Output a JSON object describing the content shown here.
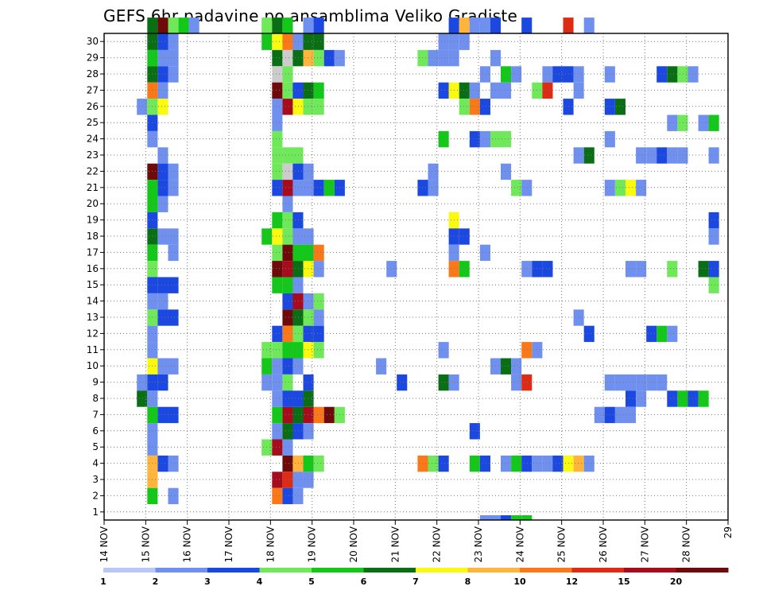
{
  "chart_data": {
    "type": "heatmap",
    "title": "GEFS 6hr padavine po ansamblima Veliko Gradiste",
    "xlabel": "",
    "ylabel": "",
    "x_tick_labels": [
      "14 NOV",
      "15 NOV",
      "16 NOV",
      "17 NOV",
      "18 NOV",
      "19 NOV",
      "20 NOV",
      "21 NOV",
      "22 NOV",
      "23 NOV",
      "24 NOV",
      "25 NOV",
      "26 NOV",
      "27 NOV",
      "28 NOV",
      "29"
    ],
    "x_unit": "6-hour steps",
    "x_range": [
      0,
      60
    ],
    "y_tick_labels": [
      "1",
      "2",
      "3",
      "4",
      "5",
      "6",
      "7",
      "8",
      "9",
      "10",
      "11",
      "12",
      "13",
      "14",
      "15",
      "16",
      "17",
      "18",
      "19",
      "20",
      "21",
      "22",
      "23",
      "24",
      "25",
      "26",
      "27",
      "28",
      "29",
      "30"
    ],
    "y_range": [
      0,
      30
    ],
    "grid": true,
    "color_scale": {
      "colors": [
        "#b9c8f7",
        "#6f90ee",
        "#1b48e0",
        "#6fe85a",
        "#14c81a",
        "#0a6e14",
        "#fafa10",
        "#ffb43c",
        "#fa7818",
        "#dc2c14",
        "#a60c1c",
        "#6e0a0a"
      ],
      "labels": [
        "1",
        "2",
        "3",
        "4",
        "5",
        "6",
        "7",
        "8",
        "10",
        "12",
        "15",
        "20"
      ]
    },
    "cells": [
      [
        4,
        30,
        5
      ],
      [
        5,
        30,
        11
      ],
      [
        6,
        30,
        3
      ],
      [
        7,
        30,
        4
      ],
      [
        8,
        30,
        1
      ],
      [
        4,
        29,
        5
      ],
      [
        5,
        29,
        2
      ],
      [
        6,
        29,
        1
      ],
      [
        1,
        29,
        4
      ],
      [
        2,
        29,
        6
      ],
      [
        3,
        29,
        8
      ],
      [
        4,
        29,
        1
      ],
      [
        5,
        29,
        5
      ],
      [
        6,
        29,
        5
      ],
      [
        4,
        28,
        4
      ],
      [
        5,
        28,
        1
      ],
      [
        6,
        28,
        1
      ],
      [
        2,
        28,
        5
      ],
      [
        3,
        28,
        12
      ],
      [
        4,
        28,
        5
      ],
      [
        5,
        28,
        7
      ],
      [
        6,
        28,
        3
      ],
      [
        7,
        28,
        2
      ],
      [
        8,
        28,
        1
      ],
      [
        4,
        27,
        5
      ],
      [
        5,
        27,
        2
      ],
      [
        6,
        27,
        1
      ],
      [
        2,
        27,
        12
      ],
      [
        3,
        27,
        3
      ],
      [
        4,
        26,
        8
      ],
      [
        5,
        26,
        1
      ],
      [
        2,
        26,
        11
      ],
      [
        3,
        26,
        3
      ],
      [
        4,
        26,
        2
      ],
      [
        5,
        26,
        5
      ],
      [
        6,
        26,
        4
      ],
      [
        3,
        25,
        1
      ],
      [
        4,
        25,
        3
      ],
      [
        5,
        25,
        6
      ],
      [
        2,
        25,
        1
      ],
      [
        3,
        25,
        10
      ],
      [
        4,
        25,
        6
      ],
      [
        5,
        25,
        3
      ],
      [
        6,
        25,
        3
      ],
      [
        4,
        24,
        2
      ],
      [
        2,
        24,
        1
      ],
      [
        4,
        23,
        1
      ],
      [
        2,
        23,
        3
      ],
      [
        5,
        22,
        1
      ],
      [
        2,
        22,
        3
      ],
      [
        3,
        22,
        3
      ],
      [
        4,
        22,
        3
      ],
      [
        4,
        21,
        11
      ],
      [
        5,
        21,
        2
      ],
      [
        6,
        21,
        1
      ],
      [
        2,
        21,
        3
      ],
      [
        3,
        21,
        12
      ],
      [
        4,
        21,
        2
      ],
      [
        5,
        21,
        1
      ],
      [
        4,
        20,
        4
      ],
      [
        5,
        20,
        2
      ],
      [
        6,
        20,
        1
      ],
      [
        2,
        20,
        2
      ],
      [
        3,
        20,
        10
      ],
      [
        4,
        20,
        1
      ],
      [
        5,
        20,
        1
      ],
      [
        6,
        20,
        2
      ],
      [
        7,
        20,
        4
      ],
      [
        8,
        20,
        2
      ],
      [
        4,
        19,
        4
      ],
      [
        5,
        19,
        1
      ],
      [
        3,
        19,
        1
      ],
      [
        4,
        18,
        2
      ],
      [
        2,
        18,
        4
      ],
      [
        3,
        18,
        3
      ],
      [
        4,
        18,
        2
      ],
      [
        4,
        17,
        5
      ],
      [
        5,
        17,
        1
      ],
      [
        6,
        17,
        1
      ],
      [
        1,
        17,
        4
      ],
      [
        2,
        17,
        6
      ],
      [
        3,
        17,
        3
      ],
      [
        4,
        17,
        1
      ],
      [
        5,
        17,
        1
      ],
      [
        4,
        16,
        4
      ],
      [
        6,
        16,
        1
      ],
      [
        2,
        16,
        3
      ],
      [
        3,
        16,
        11
      ],
      [
        4,
        16,
        4
      ],
      [
        5,
        16,
        4
      ],
      [
        6,
        16,
        8
      ],
      [
        4,
        15,
        3
      ],
      [
        2,
        15,
        11
      ],
      [
        3,
        15,
        10
      ],
      [
        4,
        15,
        5
      ],
      [
        5,
        15,
        6
      ],
      [
        6,
        15,
        1
      ],
      [
        4,
        14,
        2
      ],
      [
        5,
        14,
        2
      ],
      [
        6,
        14,
        2
      ],
      [
        2,
        14,
        4
      ],
      [
        3,
        14,
        4
      ],
      [
        4,
        14,
        1
      ],
      [
        4,
        13,
        1
      ],
      [
        5,
        13,
        1
      ],
      [
        3,
        13,
        2
      ],
      [
        4,
        13,
        10
      ],
      [
        5,
        13,
        1
      ],
      [
        6,
        13,
        3
      ],
      [
        4,
        12,
        3
      ],
      [
        5,
        12,
        2
      ],
      [
        6,
        12,
        2
      ],
      [
        3,
        12,
        11
      ],
      [
        4,
        12,
        5
      ],
      [
        5,
        12,
        3
      ],
      [
        6,
        12,
        1
      ],
      [
        4,
        11,
        1
      ],
      [
        2,
        11,
        2
      ],
      [
        3,
        11,
        8
      ],
      [
        4,
        11,
        3
      ],
      [
        5,
        11,
        2
      ],
      [
        6,
        11,
        2
      ],
      [
        4,
        10,
        1
      ],
      [
        1,
        10,
        3
      ],
      [
        2,
        10,
        3
      ],
      [
        3,
        10,
        4
      ],
      [
        4,
        10,
        4
      ],
      [
        5,
        10,
        6
      ],
      [
        6,
        10,
        3
      ],
      [
        4,
        9,
        6
      ],
      [
        5,
        9,
        1
      ],
      [
        6,
        9,
        1
      ],
      [
        1,
        9,
        4
      ],
      [
        2,
        9,
        1
      ],
      [
        3,
        9,
        2
      ],
      [
        4,
        9,
        1
      ],
      [
        3,
        8,
        1
      ],
      [
        4,
        8,
        2
      ],
      [
        5,
        8,
        2
      ],
      [
        3,
        7,
        5
      ],
      [
        4,
        7,
        1
      ],
      [
        4,
        6,
        4
      ],
      [
        5,
        6,
        2
      ],
      [
        6,
        6,
        2
      ],
      [
        2,
        6,
        4
      ],
      [
        3,
        6,
        10
      ],
      [
        4,
        6,
        5
      ],
      [
        5,
        6,
        10
      ],
      [
        6,
        6,
        8
      ],
      [
        7,
        6,
        11
      ],
      [
        8,
        6,
        3
      ],
      [
        4,
        5,
        1
      ],
      [
        2,
        5,
        1
      ],
      [
        3,
        5,
        5
      ],
      [
        4,
        5,
        2
      ],
      [
        5,
        5,
        1
      ],
      [
        4,
        4,
        1
      ],
      [
        1,
        4,
        3
      ],
      [
        2,
        4,
        10
      ],
      [
        3,
        4,
        1
      ],
      [
        4,
        3,
        7
      ],
      [
        5,
        3,
        2
      ],
      [
        6,
        3,
        1
      ],
      [
        3,
        3,
        11
      ],
      [
        4,
        3,
        7
      ],
      [
        5,
        3,
        4
      ],
      [
        6,
        3,
        3
      ],
      [
        4,
        2,
        7
      ],
      [
        2,
        2,
        10
      ],
      [
        3,
        2,
        9
      ],
      [
        4,
        2,
        1
      ],
      [
        5,
        2,
        1
      ],
      [
        4,
        1,
        4
      ],
      [
        6,
        1,
        1
      ],
      [
        2,
        1,
        8
      ],
      [
        3,
        1,
        2
      ],
      [
        4,
        1,
        1
      ],
      [
        5,
        30,
        1
      ],
      [
        6,
        30,
        2
      ],
      [
        1,
        30,
        3
      ],
      [
        2,
        30,
        5
      ],
      [
        3,
        30,
        4
      ],
      [
        3,
        8,
        1
      ],
      [
        5,
        8,
        2
      ],
      [
        1,
        8,
        1
      ],
      [
        2,
        8,
        1
      ],
      [
        3,
        8,
        3
      ],
      [
        2,
        7,
        1
      ],
      [
        3,
        7,
        2
      ],
      [
        4,
        7,
        2
      ],
      [
        5,
        7,
        5
      ]
    ],
    "far_cells": [
      [
        33,
        30,
        2
      ],
      [
        34,
        30,
        7
      ],
      [
        35,
        30,
        1
      ],
      [
        36,
        30,
        1
      ],
      [
        37,
        30,
        2
      ],
      [
        40,
        30,
        2
      ],
      [
        44,
        30,
        9
      ],
      [
        46,
        30,
        1
      ],
      [
        32,
        29,
        1
      ],
      [
        33,
        29,
        1
      ],
      [
        34,
        29,
        1
      ],
      [
        30,
        28,
        3
      ],
      [
        31,
        28,
        1
      ],
      [
        32,
        28,
        1
      ],
      [
        33,
        28,
        1
      ],
      [
        37,
        28,
        1
      ],
      [
        36,
        27,
        1
      ],
      [
        38,
        27,
        4
      ],
      [
        39,
        27,
        1
      ],
      [
        42,
        27,
        1
      ],
      [
        43,
        27,
        2
      ],
      [
        44,
        27,
        2
      ],
      [
        45,
        27,
        1
      ],
      [
        48,
        27,
        1
      ],
      [
        53,
        27,
        2
      ],
      [
        54,
        27,
        5
      ],
      [
        55,
        27,
        3
      ],
      [
        56,
        27,
        1
      ],
      [
        32,
        26,
        2
      ],
      [
        33,
        26,
        6
      ],
      [
        34,
        26,
        5
      ],
      [
        35,
        26,
        1
      ],
      [
        37,
        26,
        1
      ],
      [
        38,
        26,
        1
      ],
      [
        41,
        26,
        3
      ],
      [
        42,
        26,
        9
      ],
      [
        45,
        26,
        1
      ],
      [
        34,
        25,
        3
      ],
      [
        35,
        25,
        8
      ],
      [
        36,
        25,
        2
      ],
      [
        44,
        25,
        2
      ],
      [
        48,
        25,
        2
      ],
      [
        49,
        25,
        5
      ],
      [
        54,
        24,
        1
      ],
      [
        55,
        24,
        3
      ],
      [
        57,
        24,
        1
      ],
      [
        58,
        24,
        4
      ],
      [
        59,
        24,
        1
      ],
      [
        32,
        23,
        4
      ],
      [
        35,
        23,
        2
      ],
      [
        36,
        23,
        1
      ],
      [
        37,
        23,
        3
      ],
      [
        38,
        23,
        3
      ],
      [
        48,
        23,
        1
      ],
      [
        45,
        22,
        1
      ],
      [
        46,
        22,
        5
      ],
      [
        51,
        22,
        1
      ],
      [
        52,
        22,
        1
      ],
      [
        53,
        22,
        2
      ],
      [
        54,
        22,
        1
      ],
      [
        55,
        22,
        1
      ],
      [
        58,
        22,
        1
      ],
      [
        59,
        22,
        6
      ],
      [
        60,
        22,
        2
      ],
      [
        31,
        21,
        1
      ],
      [
        38,
        21,
        1
      ],
      [
        30,
        20,
        2
      ],
      [
        31,
        20,
        1
      ],
      [
        39,
        20,
        3
      ],
      [
        40,
        20,
        1
      ],
      [
        48,
        20,
        1
      ],
      [
        49,
        20,
        3
      ],
      [
        50,
        20,
        6
      ],
      [
        51,
        20,
        1
      ],
      [
        59,
        19,
        2
      ],
      [
        33,
        18,
        6
      ],
      [
        58,
        18,
        2
      ],
      [
        59,
        18,
        1
      ],
      [
        33,
        17,
        2
      ],
      [
        34,
        17,
        2
      ],
      [
        58,
        17,
        1
      ],
      [
        59,
        17,
        5
      ],
      [
        60,
        17,
        2
      ],
      [
        33,
        16,
        1
      ],
      [
        36,
        16,
        1
      ],
      [
        27,
        15,
        1
      ],
      [
        33,
        15,
        8
      ],
      [
        34,
        15,
        4
      ],
      [
        40,
        15,
        1
      ],
      [
        41,
        15,
        2
      ],
      [
        42,
        15,
        2
      ],
      [
        50,
        15,
        1
      ],
      [
        51,
        15,
        1
      ],
      [
        54,
        15,
        3
      ],
      [
        57,
        15,
        5
      ],
      [
        58,
        15,
        2
      ],
      [
        58,
        14,
        3
      ],
      [
        59,
        14,
        1
      ],
      [
        45,
        12,
        1
      ],
      [
        46,
        11,
        2
      ],
      [
        52,
        11,
        2
      ],
      [
        53,
        11,
        4
      ],
      [
        54,
        11,
        1
      ],
      [
        59,
        11,
        1
      ],
      [
        60,
        11,
        2
      ],
      [
        32,
        10,
        1
      ],
      [
        40,
        10,
        8
      ],
      [
        41,
        10,
        1
      ],
      [
        26,
        9,
        1
      ],
      [
        37,
        9,
        1
      ],
      [
        38,
        9,
        5
      ],
      [
        39,
        9,
        1
      ],
      [
        28,
        8,
        2
      ],
      [
        32,
        8,
        5
      ],
      [
        33,
        8,
        1
      ],
      [
        39,
        8,
        1
      ],
      [
        40,
        8,
        9
      ],
      [
        48,
        8,
        1
      ],
      [
        49,
        8,
        1
      ],
      [
        50,
        8,
        1
      ],
      [
        51,
        8,
        1
      ],
      [
        52,
        8,
        1
      ],
      [
        53,
        8,
        1
      ],
      [
        50,
        7,
        2
      ],
      [
        51,
        7,
        1
      ],
      [
        54,
        7,
        2
      ],
      [
        55,
        7,
        4
      ],
      [
        56,
        7,
        2
      ],
      [
        57,
        7,
        4
      ],
      [
        47,
        6,
        1
      ],
      [
        48,
        6,
        2
      ],
      [
        49,
        6,
        1
      ],
      [
        50,
        6,
        1
      ],
      [
        35,
        5,
        2
      ],
      [
        30,
        3,
        8
      ],
      [
        31,
        3,
        3
      ],
      [
        32,
        3,
        2
      ],
      [
        35,
        3,
        4
      ],
      [
        36,
        3,
        2
      ],
      [
        38,
        3,
        1
      ],
      [
        39,
        3,
        4
      ],
      [
        40,
        3,
        2
      ],
      [
        41,
        3,
        1
      ],
      [
        42,
        3,
        1
      ],
      [
        43,
        3,
        2
      ],
      [
        44,
        3,
        6
      ],
      [
        45,
        3,
        7
      ],
      [
        46,
        3,
        1
      ],
      [
        36,
        0,
        1
      ],
      [
        37,
        0,
        1
      ],
      [
        38,
        0,
        2
      ],
      [
        39,
        0,
        4
      ],
      [
        40,
        0,
        4
      ]
    ]
  }
}
